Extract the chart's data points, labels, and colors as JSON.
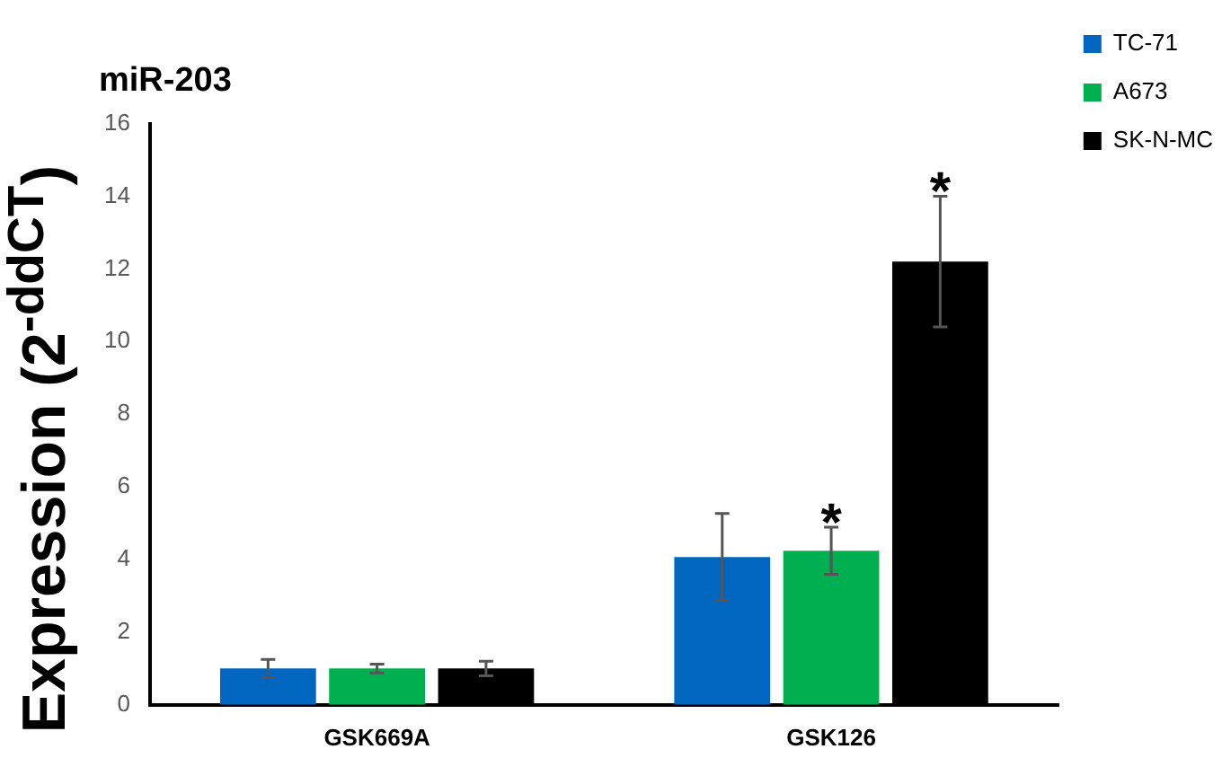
{
  "chart_data": {
    "type": "bar",
    "title": "miR-203",
    "ylabel": "Expression (2$^{-ddCT}$)",
    "categories": [
      "GSK669A",
      "GSK126"
    ],
    "series": [
      {
        "name": "TC-71",
        "color": "#0066c0",
        "values": [
          1.0,
          4.07
        ],
        "errors": [
          0.25,
          1.2
        ]
      },
      {
        "name": "A673",
        "color": "#00b050",
        "values": [
          1.0,
          4.24
        ],
        "errors": [
          0.12,
          0.65
        ]
      },
      {
        "name": "SK-N-MC",
        "color": "#000000",
        "values": [
          1.0,
          12.2
        ],
        "errors": [
          0.2,
          1.8
        ]
      }
    ],
    "ylim": [
      0,
      16
    ],
    "yticks": [
      0,
      2,
      4,
      6,
      8,
      10,
      12,
      14,
      16
    ],
    "grid": false,
    "legend": "top right",
    "annotations": [
      {
        "text": "*",
        "x": "GSK126",
        "y": 4.24
      },
      "*"
    ]
  }
}
